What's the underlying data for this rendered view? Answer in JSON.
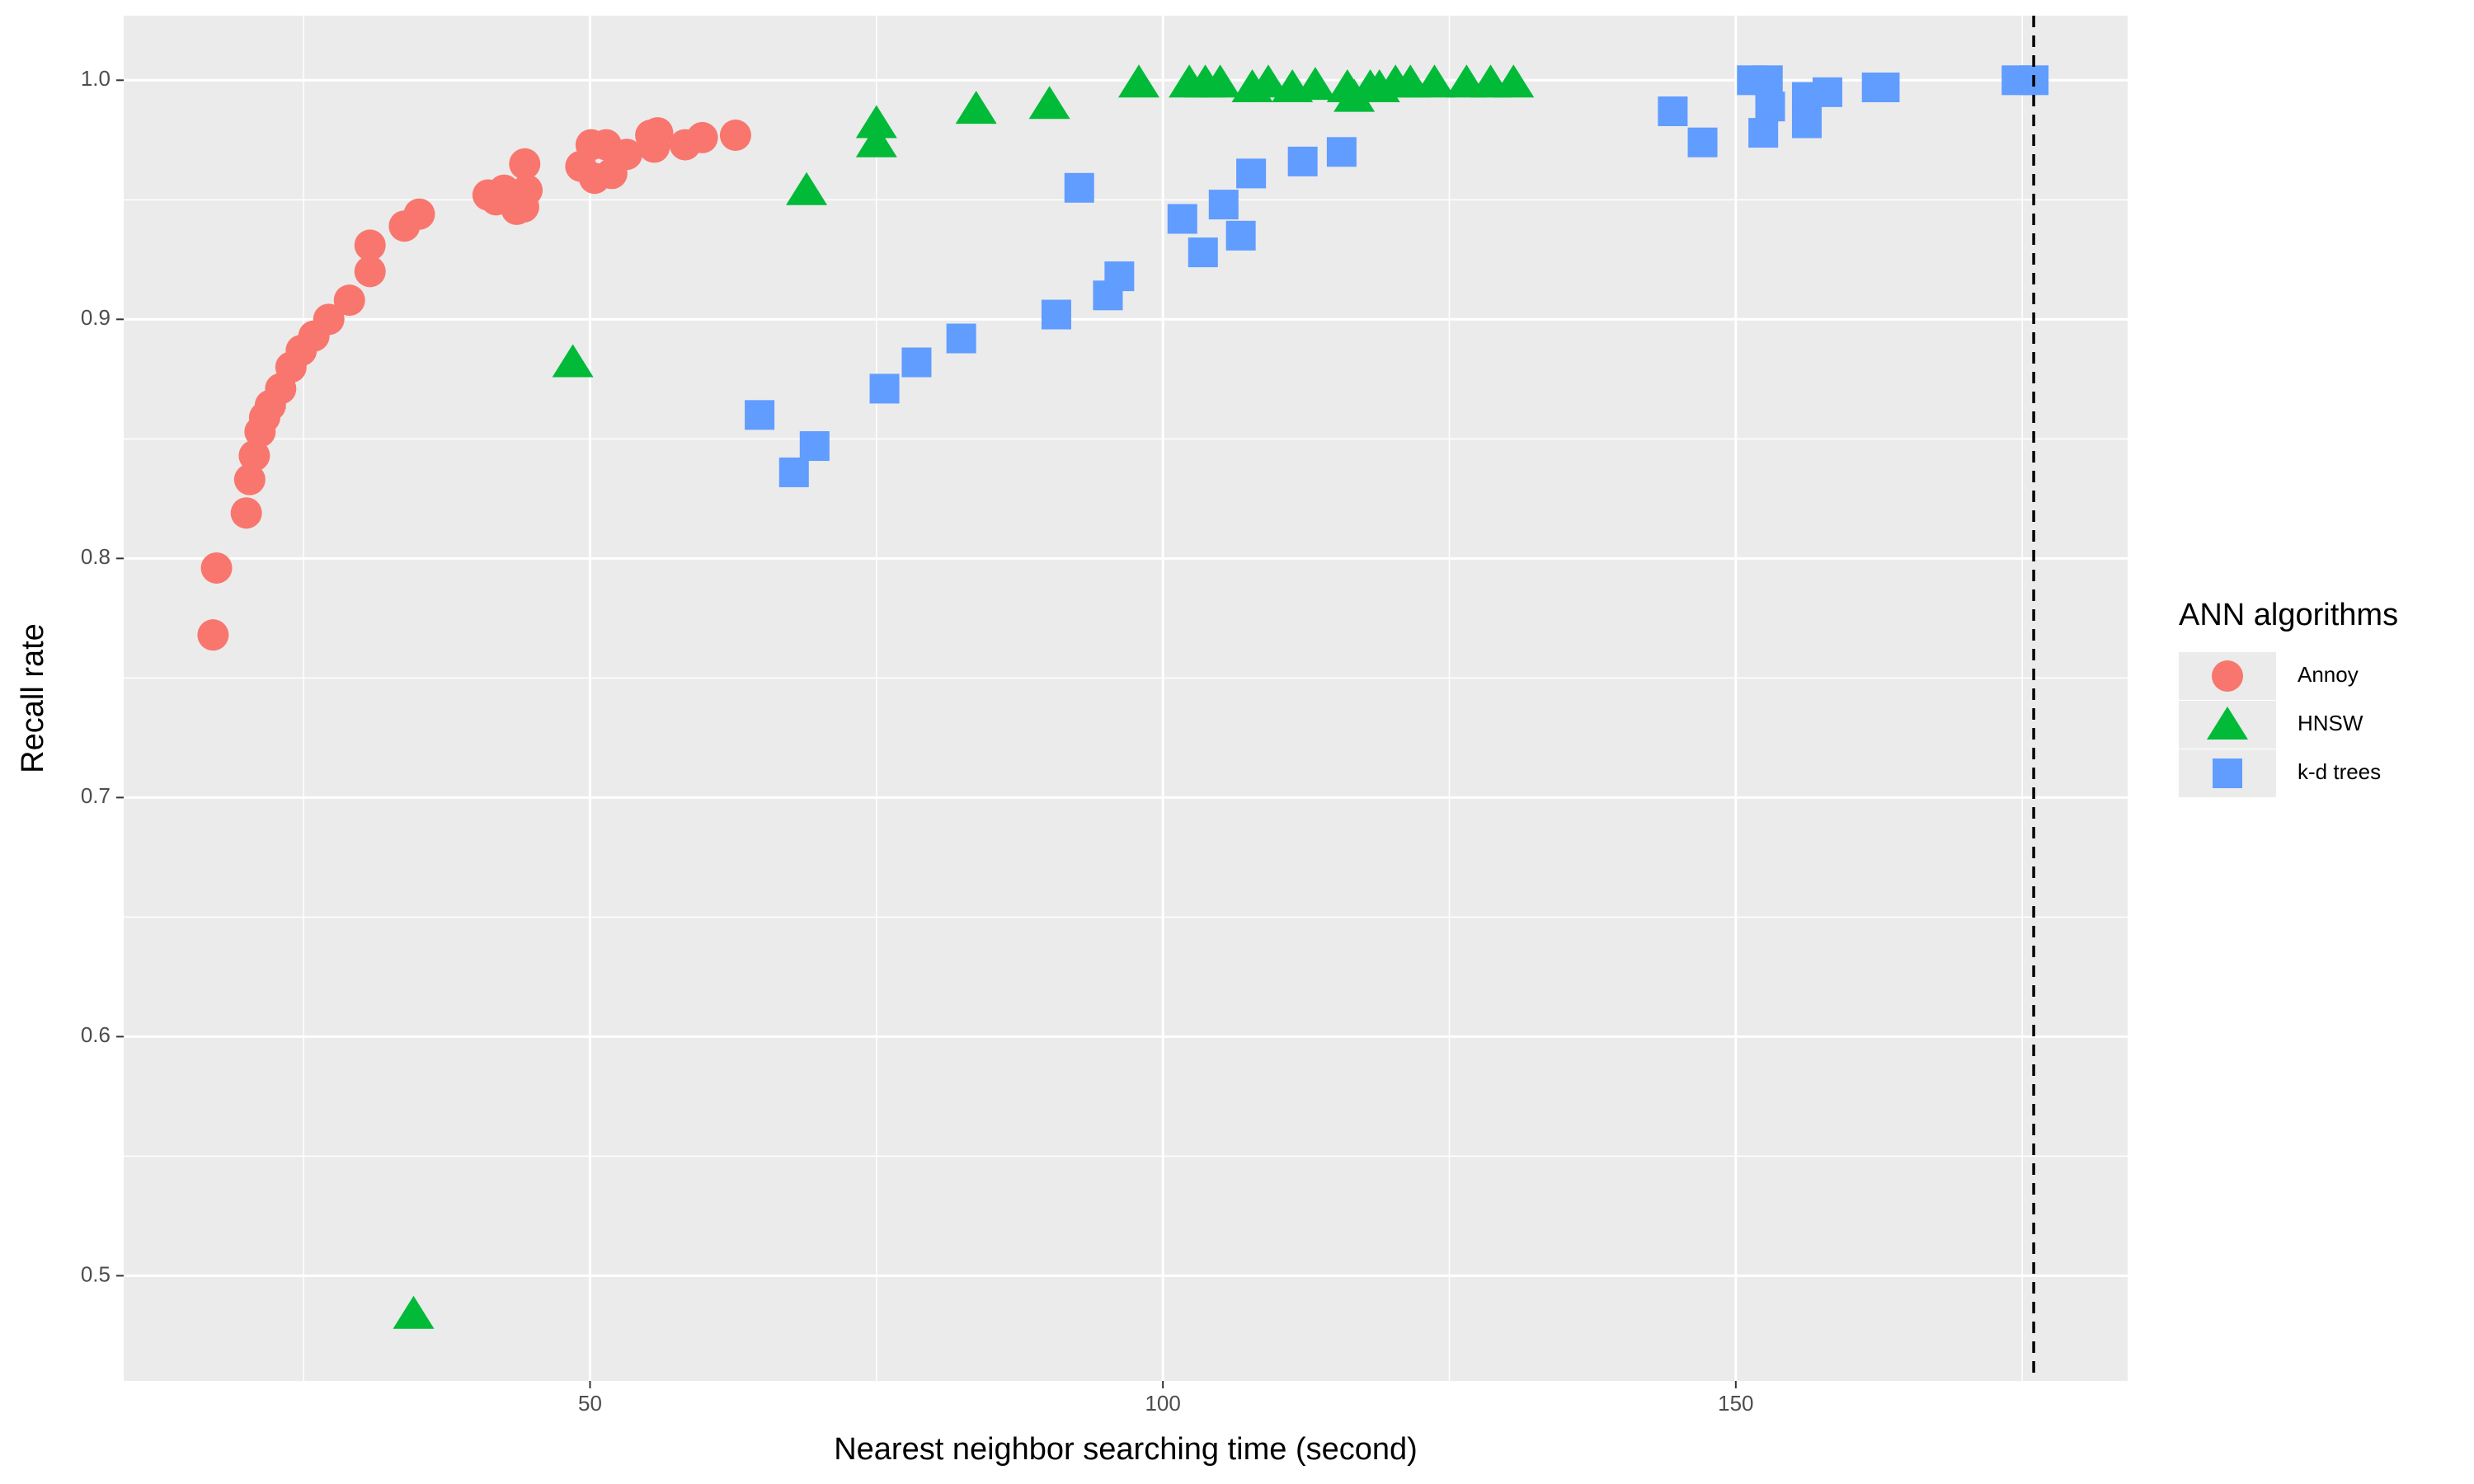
{
  "chart_data": {
    "type": "scatter",
    "x_label": "Nearest neighbor searching time (second)",
    "y_label": "Recall rate",
    "legend_title": "ANN algorithms",
    "xlim": [
      9.3,
      184.2
    ],
    "ylim": [
      0.456,
      1.027
    ],
    "xticks": [
      50,
      100,
      150
    ],
    "yticks": [
      0.5,
      0.6,
      0.7,
      0.8,
      0.9,
      {
        "value": 1.0,
        "label": "1.0"
      }
    ],
    "x_minor_grid": [
      25,
      75,
      125,
      175
    ],
    "y_minor_grid": [
      0.55,
      0.65,
      0.75,
      0.85,
      0.95
    ],
    "grid": true,
    "vline": {
      "x": 176.0,
      "style": "dashed"
    },
    "series": [
      {
        "name": "Annoy",
        "color": "#F8766D",
        "shape": "circle",
        "x": [
          17.1,
          17.4,
          20.0,
          20.3,
          20.7,
          21.2,
          21.6,
          22.1,
          23.0,
          23.9,
          24.8,
          25.9,
          27.2,
          29.0,
          30.8,
          30.8,
          33.8,
          35.1,
          41.1,
          41.8,
          42.5,
          43.4,
          43.6,
          44.2,
          44.5,
          44.3,
          49.2,
          50.1,
          50.4,
          51.4,
          51.9,
          53.2,
          55.3,
          55.9,
          55.6,
          58.3,
          59.8,
          62.7
        ],
        "values": [
          0.768,
          0.796,
          0.819,
          0.833,
          0.843,
          0.853,
          0.859,
          0.864,
          0.871,
          0.88,
          0.887,
          0.893,
          0.9,
          0.908,
          0.92,
          0.931,
          0.939,
          0.944,
          0.952,
          0.95,
          0.954,
          0.95,
          0.946,
          0.947,
          0.954,
          0.965,
          0.964,
          0.973,
          0.959,
          0.973,
          0.961,
          0.969,
          0.977,
          0.978,
          0.972,
          0.973,
          0.976,
          0.977
        ]
      },
      {
        "name": "HNSW",
        "color": "#00BA38",
        "shape": "triangle",
        "x": [
          34.6,
          48.5,
          68.9,
          75.0,
          75.0,
          83.7,
          90.1,
          97.9,
          102.3,
          103.7,
          105.0,
          107.8,
          109.2,
          111.3,
          113.3,
          116.1,
          116.7,
          118.1,
          118.9,
          120.3,
          121.6,
          123.7,
          126.5,
          128.6,
          130.6
        ],
        "values": [
          0.484,
          0.882,
          0.954,
          0.982,
          0.974,
          0.988,
          0.99,
          0.999,
          0.999,
          0.999,
          0.999,
          0.997,
          0.999,
          0.997,
          0.998,
          0.997,
          0.993,
          0.997,
          0.997,
          0.999,
          0.999,
          0.999,
          0.999,
          0.999,
          0.999
        ]
      },
      {
        "name": "k-d trees",
        "color": "#619CFF",
        "shape": "square",
        "x": [
          64.8,
          67.8,
          69.6,
          75.7,
          78.5,
          82.4,
          90.7,
          92.7,
          95.2,
          96.2,
          101.7,
          103.5,
          105.3,
          106.8,
          107.7,
          112.2,
          115.6,
          144.5,
          147.1,
          151.4,
          152.8,
          152.4,
          153.0,
          156.2,
          156.2,
          158.0,
          162.3,
          163.0,
          174.5,
          176.0
        ],
        "values": [
          0.86,
          0.836,
          0.847,
          0.871,
          0.882,
          0.892,
          0.902,
          0.955,
          0.91,
          0.918,
          0.942,
          0.928,
          0.948,
          0.935,
          0.961,
          0.966,
          0.97,
          0.987,
          0.974,
          1.0,
          1.0,
          0.978,
          0.989,
          0.982,
          0.993,
          0.995,
          0.997,
          0.997,
          1.0,
          1.0
        ]
      }
    ]
  }
}
